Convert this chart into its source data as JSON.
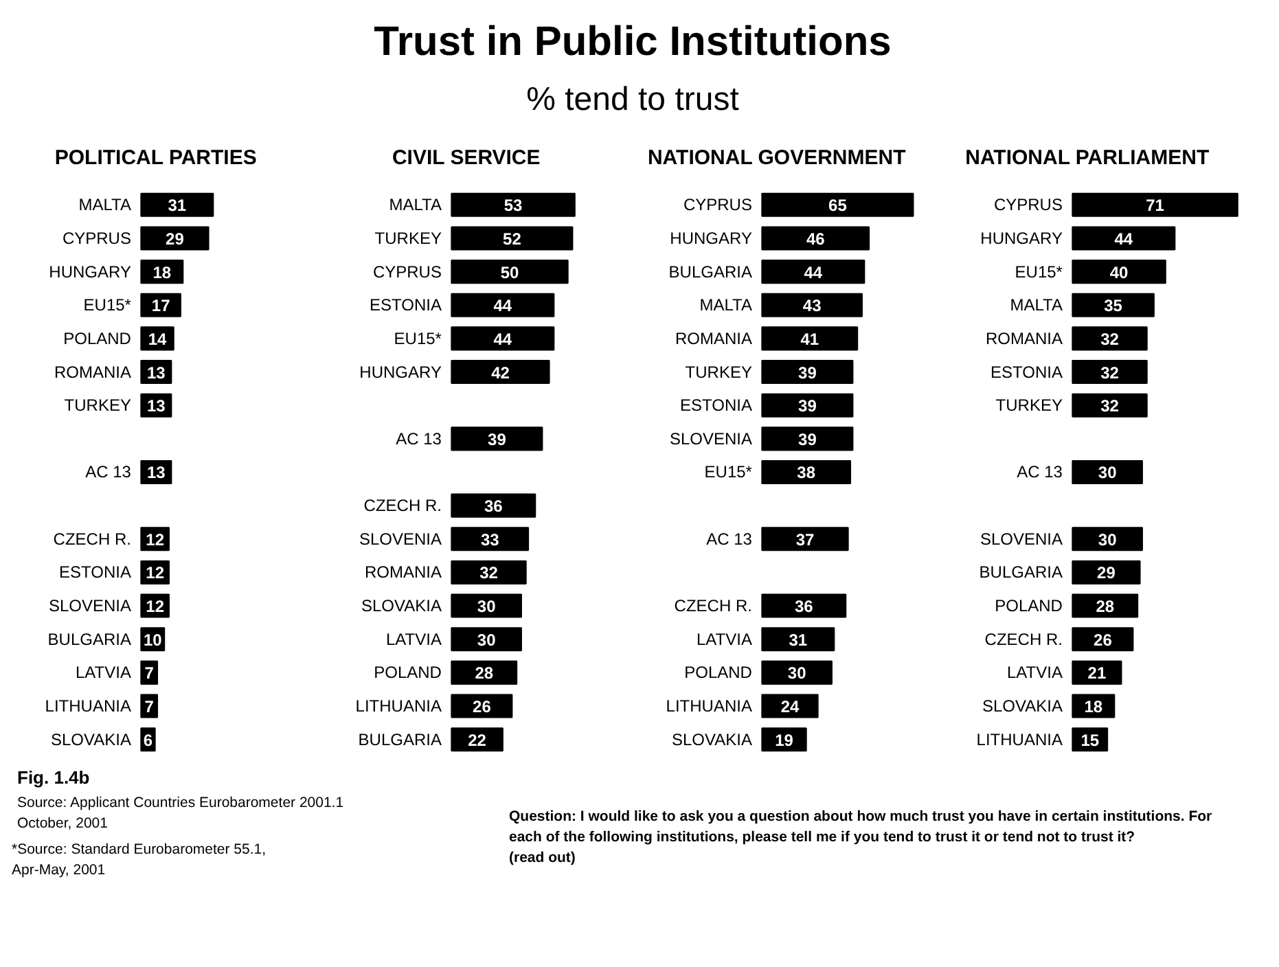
{
  "chart_data": [
    {
      "type": "other",
      "title": "Trust in Public Institutions",
      "subtitle": "% tend to trust",
      "annotations": [
        "Fig. 1.4b",
        "Source: Applicant Countries Eurobarometer 2001.1\nOctober, 2001",
        "*Source: Standard Eurobarometer 55.1,\nApr-May, 2001",
        "Question:  I would like to ask you a question about how much trust you have in certain institutions. For\neach of the following institutions, please tell me if you tend to trust it or tend not to trust it?\n(read out)"
      ]
    },
    {
      "type": "bar",
      "orientation": "horizontal",
      "title": "POLITICAL PARTIES",
      "color": "#000000",
      "data_labels": true,
      "categories": [
        "MALTA",
        "CYPRUS",
        "HUNGARY",
        "EU15*",
        "POLAND",
        "ROMANIA",
        "TURKEY",
        null,
        "AC 13",
        null,
        "CZECH R.",
        "ESTONIA",
        "SLOVENIA",
        "BULGARIA",
        "LATVIA",
        "LITHUANIA",
        "SLOVAKIA"
      ],
      "values": [
        31,
        29,
        18,
        17,
        14,
        13,
        13,
        null,
        13,
        null,
        12,
        12,
        12,
        10,
        7,
        7,
        6
      ]
    },
    {
      "type": "bar",
      "orientation": "horizontal",
      "title": "CIVIL SERVICE",
      "color": "#000000",
      "data_labels": true,
      "categories": [
        "MALTA",
        "TURKEY",
        "CYPRUS",
        "ESTONIA",
        "EU15*",
        "HUNGARY",
        null,
        "AC 13",
        null,
        "CZECH R.",
        "SLOVENIA",
        "ROMANIA",
        "SLOVAKIA",
        "LATVIA",
        "POLAND",
        "LITHUANIA",
        "BULGARIA"
      ],
      "values": [
        53,
        52,
        50,
        44,
        44,
        42,
        null,
        39,
        null,
        36,
        33,
        32,
        30,
        30,
        28,
        26,
        22
      ]
    },
    {
      "type": "bar",
      "orientation": "horizontal",
      "title": "NATIONAL GOVERNMENT",
      "color": "#000000",
      "data_labels": true,
      "categories": [
        "CYPRUS",
        "HUNGARY",
        "BULGARIA",
        "MALTA",
        "ROMANIA",
        "TURKEY",
        "ESTONIA",
        "SLOVENIA",
        "EU15*",
        null,
        "AC 13",
        null,
        "CZECH R.",
        "LATVIA",
        "POLAND",
        "LITHUANIA",
        "SLOVAKIA"
      ],
      "values": [
        65,
        46,
        44,
        43,
        41,
        39,
        39,
        39,
        38,
        null,
        37,
        null,
        36,
        31,
        30,
        24,
        19
      ]
    },
    {
      "type": "bar",
      "orientation": "horizontal",
      "title": "NATIONAL PARLIAMENT",
      "color": "#000000",
      "data_labels": true,
      "categories": [
        "CYPRUS",
        "HUNGARY",
        "EU15*",
        "MALTA",
        "ROMANIA",
        "ESTONIA",
        "TURKEY",
        null,
        "AC 13",
        null,
        "SLOVENIA",
        "BULGARIA",
        "POLAND",
        "CZECH R.",
        "LATVIA",
        "SLOVAKIA",
        "LITHUANIA"
      ],
      "values": [
        71,
        44,
        40,
        35,
        32,
        32,
        32,
        null,
        30,
        null,
        30,
        29,
        28,
        26,
        21,
        18,
        15
      ]
    }
  ]
}
